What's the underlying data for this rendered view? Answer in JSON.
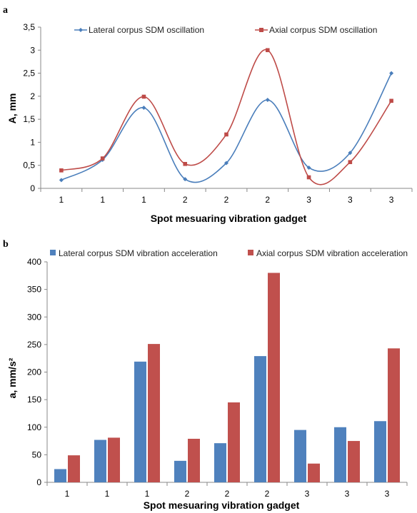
{
  "chart_data": [
    {
      "panel_label": "a",
      "type": "line",
      "categories": [
        "1",
        "1",
        "1",
        "2",
        "2",
        "2",
        "3",
        "3",
        "3"
      ],
      "series": [
        {
          "name": "Lateral corpus SDM oscillation",
          "values": [
            0.18,
            0.62,
            1.75,
            0.2,
            0.55,
            1.92,
            0.45,
            0.77,
            2.5
          ],
          "color": "#4a7ebb",
          "marker": "diamond"
        },
        {
          "name": "Axial corpus SDM oscillation",
          "values": [
            0.39,
            0.65,
            1.99,
            0.53,
            1.17,
            3.0,
            0.24,
            0.57,
            1.9
          ],
          "color": "#be4b48",
          "marker": "square"
        }
      ],
      "ylabel": "A, mm",
      "xlabel": "Spot mesuaring vibration gadget",
      "ylim": [
        0,
        3.5
      ],
      "yticks": [
        "0",
        "0,5",
        "1",
        "1,5",
        "2",
        "2,5",
        "3",
        "3,5"
      ],
      "ytick_values": [
        0,
        0.5,
        1,
        1.5,
        2,
        2.5,
        3,
        3.5
      ],
      "grid": false,
      "smooth": true,
      "legend_position": "top"
    },
    {
      "panel_label": "b",
      "type": "bar",
      "categories": [
        "1",
        "1",
        "1",
        "2",
        "2",
        "2",
        "3",
        "3",
        "3"
      ],
      "series": [
        {
          "name": "Lateral corpus SDM vibration acceleration",
          "values": [
            24,
            77,
            219,
            39,
            71,
            229,
            95,
            100,
            111
          ],
          "color": "#4f81bd"
        },
        {
          "name": "Axial corpus SDM vibration acceleration",
          "values": [
            49,
            81,
            251,
            79,
            145,
            380,
            34,
            75,
            243
          ],
          "color": "#c0504d"
        }
      ],
      "ylabel": "a, mm/s²",
      "xlabel": "Spot mesuaring vibration gadget",
      "ylim": [
        0,
        400
      ],
      "yticks": [
        "0",
        "50",
        "100",
        "150",
        "200",
        "250",
        "300",
        "350",
        "400"
      ],
      "ytick_values": [
        0,
        50,
        100,
        150,
        200,
        250,
        300,
        350,
        400
      ],
      "grid": false,
      "legend_position": "top"
    }
  ]
}
